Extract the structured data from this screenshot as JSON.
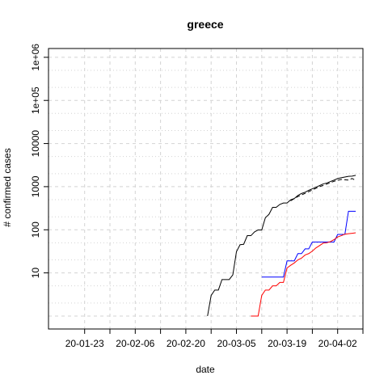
{
  "chart_data": {
    "type": "line",
    "title": "greece",
    "xlabel": "date",
    "ylabel": "# confirmed cases",
    "x_axis": "date",
    "y_scale": "log",
    "grid": true,
    "xlim": [
      "2020-01-13",
      "2020-04-09"
    ],
    "ylim": [
      0.5,
      1600000
    ],
    "x_ticks": [
      {
        "date": "2020-01-23",
        "label": "20-01-23"
      },
      {
        "date": "2020-02-06",
        "label": "20-02-06"
      },
      {
        "date": "2020-02-20",
        "label": "20-02-20"
      },
      {
        "date": "2020-03-05",
        "label": "20-03-05"
      },
      {
        "date": "2020-03-19",
        "label": "20-03-19"
      },
      {
        "date": "2020-04-02",
        "label": "20-04-02"
      }
    ],
    "x_minor_ticks": [
      "2020-01-30",
      "2020-02-13",
      "2020-02-27",
      "2020-03-12",
      "2020-03-26",
      "2020-04-09"
    ],
    "y_ticks": [
      {
        "value": 10,
        "label": "10"
      },
      {
        "value": 100,
        "label": "100"
      },
      {
        "value": 1000,
        "label": "1000"
      },
      {
        "value": 10000,
        "label": "10000"
      },
      {
        "value": 100000,
        "label": "1e+05"
      },
      {
        "value": 1000000,
        "label": "1e+06"
      }
    ],
    "series": [
      {
        "color": "#000000",
        "dash": "solid",
        "points": [
          [
            "2020-02-26",
            1
          ],
          [
            "2020-02-27",
            3
          ],
          [
            "2020-02-28",
            4
          ],
          [
            "2020-02-29",
            4
          ],
          [
            "2020-03-01",
            7
          ],
          [
            "2020-03-02",
            7
          ],
          [
            "2020-03-03",
            7
          ],
          [
            "2020-03-04",
            9
          ],
          [
            "2020-03-05",
            31
          ],
          [
            "2020-03-06",
            45
          ],
          [
            "2020-03-07",
            46
          ],
          [
            "2020-03-08",
            73
          ],
          [
            "2020-03-09",
            73
          ],
          [
            "2020-03-10",
            89
          ],
          [
            "2020-03-11",
            99
          ],
          [
            "2020-03-12",
            99
          ],
          [
            "2020-03-13",
            190
          ],
          [
            "2020-03-14",
            228
          ],
          [
            "2020-03-15",
            331
          ],
          [
            "2020-03-16",
            331
          ],
          [
            "2020-03-17",
            387
          ],
          [
            "2020-03-18",
            418
          ],
          [
            "2020-03-19",
            418
          ],
          [
            "2020-03-20",
            495
          ],
          [
            "2020-03-21",
            530
          ],
          [
            "2020-03-22",
            624
          ],
          [
            "2020-03-23",
            695
          ],
          [
            "2020-03-24",
            743
          ],
          [
            "2020-03-25",
            821
          ],
          [
            "2020-03-26",
            892
          ],
          [
            "2020-03-27",
            966
          ],
          [
            "2020-03-28",
            1061
          ],
          [
            "2020-03-29",
            1156
          ],
          [
            "2020-03-30",
            1212
          ],
          [
            "2020-03-31",
            1314
          ],
          [
            "2020-04-01",
            1415
          ],
          [
            "2020-04-02",
            1544
          ],
          [
            "2020-04-03",
            1613
          ],
          [
            "2020-04-04",
            1673
          ],
          [
            "2020-04-05",
            1735
          ],
          [
            "2020-04-06",
            1755
          ],
          [
            "2020-04-07",
            1832
          ]
        ]
      },
      {
        "color": "#000000",
        "dash": "dashed",
        "points": [
          [
            "2020-03-20",
            470
          ],
          [
            "2020-03-22",
            590
          ],
          [
            "2020-03-24",
            700
          ],
          [
            "2020-03-26",
            840
          ],
          [
            "2020-03-28",
            1000
          ],
          [
            "2020-03-30",
            1150
          ],
          [
            "2020-04-01",
            1330
          ],
          [
            "2020-04-03",
            1470
          ],
          [
            "2020-04-05",
            1420
          ],
          [
            "2020-04-06",
            1550
          ],
          [
            "2020-04-07",
            1400
          ]
        ]
      },
      {
        "color": "#0000ff",
        "dash": "solid",
        "points": [
          [
            "2020-03-12",
            8
          ],
          [
            "2020-03-18",
            8
          ],
          [
            "2020-03-19",
            19
          ],
          [
            "2020-03-21",
            19
          ],
          [
            "2020-03-22",
            28
          ],
          [
            "2020-03-23",
            28
          ],
          [
            "2020-03-24",
            36
          ],
          [
            "2020-03-25",
            36
          ],
          [
            "2020-03-26",
            52
          ],
          [
            "2020-03-31",
            52
          ],
          [
            "2020-04-01",
            52
          ],
          [
            "2020-04-02",
            78
          ],
          [
            "2020-04-04",
            78
          ],
          [
            "2020-04-05",
            269
          ],
          [
            "2020-04-07",
            269
          ]
        ]
      },
      {
        "color": "#ff0000",
        "dash": "solid",
        "points": [
          [
            "2020-03-09",
            1
          ],
          [
            "2020-03-11",
            1
          ],
          [
            "2020-03-12",
            3
          ],
          [
            "2020-03-13",
            4
          ],
          [
            "2020-03-14",
            4
          ],
          [
            "2020-03-15",
            5
          ],
          [
            "2020-03-16",
            5
          ],
          [
            "2020-03-17",
            6
          ],
          [
            "2020-03-18",
            6
          ],
          [
            "2020-03-19",
            13
          ],
          [
            "2020-03-20",
            15
          ],
          [
            "2020-03-21",
            17
          ],
          [
            "2020-03-22",
            20
          ],
          [
            "2020-03-23",
            22
          ],
          [
            "2020-03-24",
            26
          ],
          [
            "2020-03-25",
            28
          ],
          [
            "2020-03-26",
            32
          ],
          [
            "2020-03-27",
            38
          ],
          [
            "2020-03-28",
            43
          ],
          [
            "2020-03-29",
            49
          ],
          [
            "2020-03-30",
            50
          ],
          [
            "2020-03-31",
            53
          ],
          [
            "2020-04-01",
            59
          ],
          [
            "2020-04-02",
            68
          ],
          [
            "2020-04-03",
            73
          ],
          [
            "2020-04-04",
            79
          ],
          [
            "2020-04-05",
            81
          ],
          [
            "2020-04-06",
            83
          ],
          [
            "2020-04-07",
            85
          ]
        ]
      }
    ]
  }
}
